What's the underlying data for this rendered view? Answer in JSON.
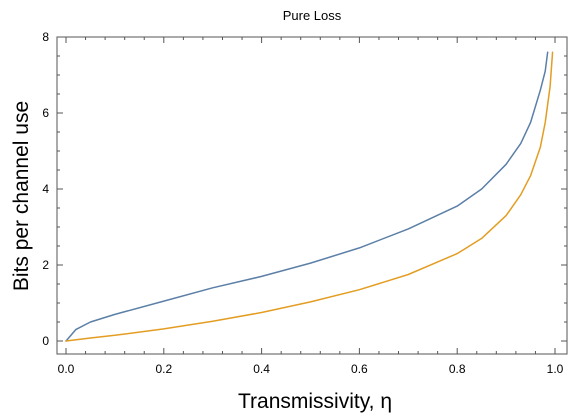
{
  "chart_data": {
    "type": "line",
    "title": "Pure Loss",
    "xlabel": "Transmissivity, η",
    "ylabel": "Bits per channel use",
    "xlim": [
      0,
      1
    ],
    "ylim": [
      0,
      8
    ],
    "xticks": [
      "0.0",
      "0.2",
      "0.4",
      "0.6",
      "0.8",
      "1.0"
    ],
    "yticks": [
      "0",
      "2",
      "4",
      "6",
      "8"
    ],
    "xtick_values": [
      0,
      0.2,
      0.4,
      0.6,
      0.8,
      1.0
    ],
    "ytick_values": [
      0,
      2,
      4,
      6,
      8
    ],
    "grid": false,
    "series": [
      {
        "color": "#5b7fa6",
        "x": [
          0,
          0.02,
          0.05,
          0.1,
          0.2,
          0.3,
          0.4,
          0.5,
          0.6,
          0.7,
          0.8,
          0.85,
          0.9,
          0.93,
          0.95,
          0.97,
          0.98,
          0.985
        ],
        "y": [
          0,
          0.3,
          0.5,
          0.7,
          1.05,
          1.4,
          1.7,
          2.05,
          2.45,
          2.95,
          3.55,
          4.0,
          4.65,
          5.2,
          5.75,
          6.6,
          7.1,
          7.6
        ]
      },
      {
        "color": "#e39d22",
        "x": [
          0,
          0.05,
          0.1,
          0.2,
          0.3,
          0.4,
          0.5,
          0.6,
          0.7,
          0.8,
          0.85,
          0.9,
          0.93,
          0.95,
          0.97,
          0.98,
          0.99,
          0.995
        ],
        "y": [
          0,
          0.08,
          0.15,
          0.32,
          0.52,
          0.75,
          1.03,
          1.35,
          1.75,
          2.3,
          2.7,
          3.3,
          3.85,
          4.35,
          5.1,
          5.75,
          6.7,
          7.6
        ]
      }
    ]
  }
}
